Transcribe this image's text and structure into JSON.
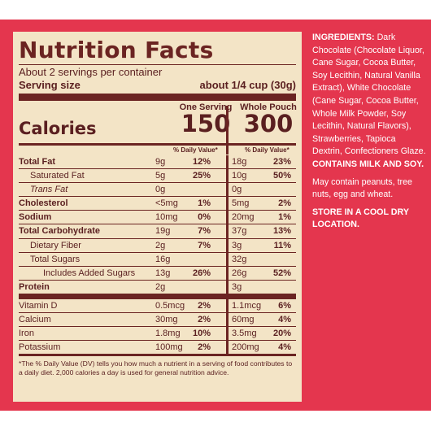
{
  "nutrition": {
    "title": "Nutrition Facts",
    "servings": "About 2 servings per container",
    "serving_size_label": "Serving size",
    "serving_size_value": "about 1/4 cup (30g)",
    "calories_label": "Calories",
    "col1_head": "One Serving",
    "col1_calories": "150",
    "col2_head": "Whole Pouch",
    "col2_calories": "300",
    "dv_head": "% Daily Value*",
    "rows": [
      {
        "label": "Total Fat",
        "a": "9g",
        "ap": "12%",
        "b": "18g",
        "bp": "23%"
      },
      {
        "label": "Saturated Fat",
        "a": "5g",
        "ap": "25%",
        "b": "10g",
        "bp": "50%"
      },
      {
        "label": "Trans Fat",
        "a": "0g",
        "ap": "",
        "b": "0g",
        "bp": ""
      },
      {
        "label": "Cholesterol",
        "a": "<5mg",
        "ap": "1%",
        "b": "5mg",
        "bp": "2%"
      },
      {
        "label": "Sodium",
        "a": "10mg",
        "ap": "0%",
        "b": "20mg",
        "bp": "1%"
      },
      {
        "label": "Total Carbohydrate",
        "a": "19g",
        "ap": "7%",
        "b": "37g",
        "bp": "13%"
      },
      {
        "label": "Dietary Fiber",
        "a": "2g",
        "ap": "7%",
        "b": "3g",
        "bp": "11%"
      },
      {
        "label": "Total Sugars",
        "a": "16g",
        "ap": "",
        "b": "32g",
        "bp": ""
      },
      {
        "label": "Includes Added Sugars",
        "a": "13g",
        "ap": "26%",
        "b": "26g",
        "bp": "52%"
      },
      {
        "label": "Protein",
        "a": "2g",
        "ap": "",
        "b": "3g",
        "bp": ""
      },
      {
        "label": "Vitamin D",
        "a": "0.5mcg",
        "ap": "2%",
        "b": "1.1mcg",
        "bp": "6%"
      },
      {
        "label": "Calcium",
        "a": "30mg",
        "ap": "2%",
        "b": "60mg",
        "bp": "4%"
      },
      {
        "label": "Iron",
        "a": "1.8mg",
        "ap": "10%",
        "b": "3.5mg",
        "bp": "20%"
      },
      {
        "label": "Potassium",
        "a": "100mg",
        "ap": "2%",
        "b": "200mg",
        "bp": "4%"
      }
    ],
    "footnote": "*The % Daily Value (DV) tells you how much a nutrient in a serving of food contributes to a daily diet. 2,000 calories a day is used for general nutrition advice."
  },
  "side": {
    "ingredients_label": "INGREDIENTS:",
    "ingredients_text": "Dark Chocolate (Chocolate Liquor, Cane Sugar, Cocoa Butter, Soy Lecithin, Natural Vanilla Extract), White Chocolate (Cane Sugar, Cocoa Butter, Whole Milk Powder, Soy Lecithin, Natural Flavors), Strawberries, Tapioca Dextrin, Confectioners Glaze.",
    "contains": "CONTAINS MILK AND SOY.",
    "may_contain": "May contain peanuts, tree nuts, egg and wheat.",
    "storage": "STORE IN A COOL DRY LOCATION."
  }
}
